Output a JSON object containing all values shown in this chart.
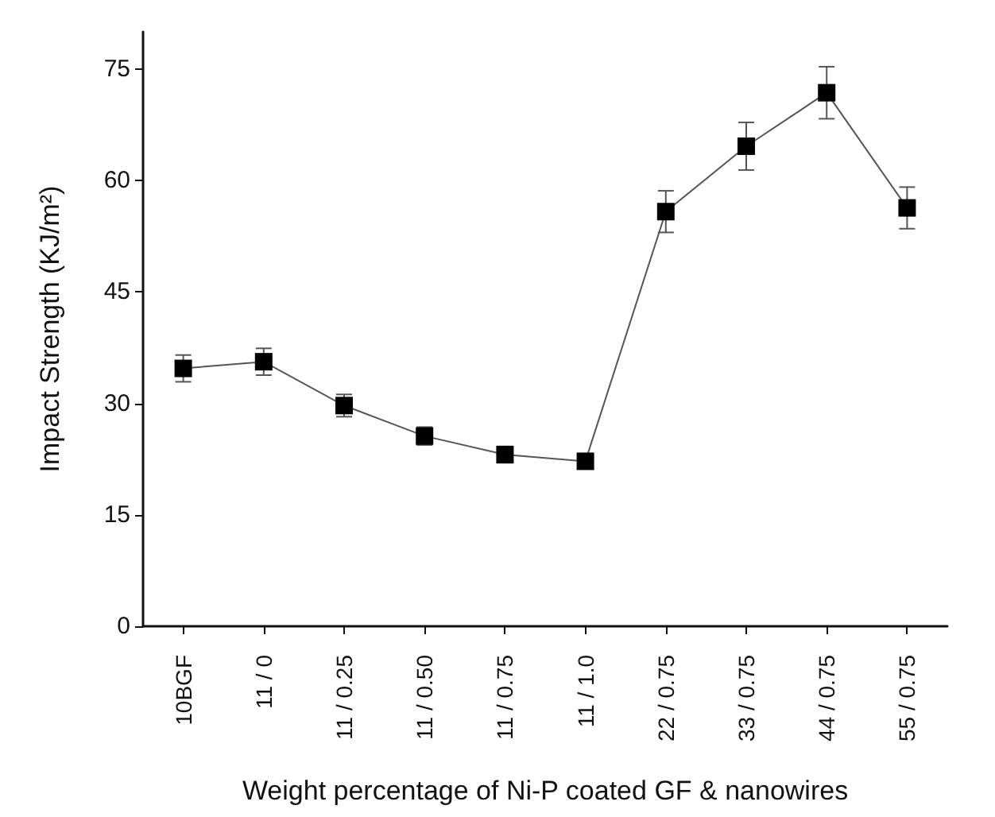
{
  "chart_data": {
    "type": "line",
    "xlabel": "Weight percentage of Ni-P coated GF & nanowires",
    "ylabel": "Impact Strength (KJ/m²)",
    "categories": [
      "10BGF",
      "11 / 0",
      "11 / 0.25",
      "11 / 0.50",
      "11 / 0.75",
      "11 / 1.0",
      "22 / 0.75",
      "33 / 0.75",
      "44 / 0.75",
      "55 / 0.75"
    ],
    "series": [
      {
        "color": "#000000",
        "values": [
          34.7,
          35.6,
          29.7,
          25.6,
          23.1,
          22.2,
          55.8,
          64.6,
          71.8,
          56.3
        ],
        "errors": [
          1.8,
          1.8,
          1.5,
          1.2,
          1.1,
          1.0,
          2.8,
          3.2,
          3.5,
          2.8
        ]
      }
    ],
    "ylim": [
      0,
      80
    ],
    "yticks": [
      0,
      15,
      30,
      45,
      60,
      75
    ],
    "grid": false,
    "marker": "square",
    "line_style": "solid"
  }
}
